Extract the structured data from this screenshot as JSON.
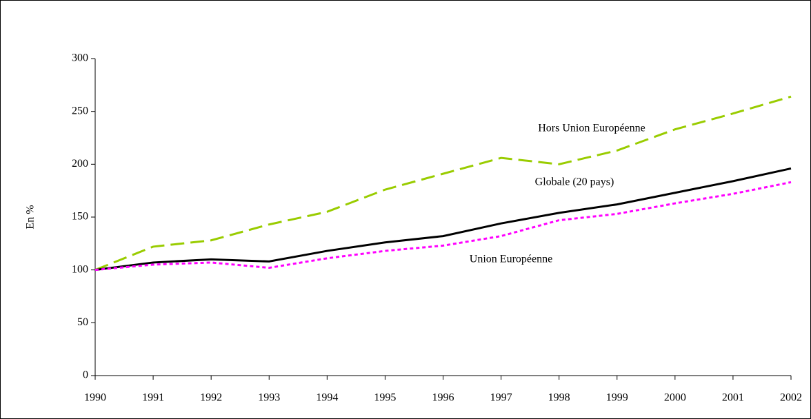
{
  "chart_data": {
    "type": "line",
    "y_label": "En %",
    "categories": [
      "1990",
      "1991",
      "1992",
      "1993",
      "1994",
      "1995",
      "1996",
      "1997",
      "1998",
      "1999",
      "2000",
      "2001",
      "2002"
    ],
    "series": [
      {
        "name": "Hors Union Européenne",
        "color": "#99cc00",
        "dash": "dashed",
        "values": [
          100,
          122,
          128,
          143,
          155,
          176,
          191,
          206,
          200,
          213,
          233,
          248,
          264
        ]
      },
      {
        "name": "Globale (20 pays)",
        "color": "#000000",
        "dash": "solid",
        "values": [
          100,
          107,
          110,
          108,
          118,
          126,
          132,
          144,
          154,
          162,
          173,
          184,
          196
        ]
      },
      {
        "name": "Union Européenne",
        "color": "#ff00ff",
        "dash": "dotted",
        "values": [
          100,
          105,
          107,
          102,
          111,
          118,
          123,
          132,
          147,
          153,
          163,
          172,
          183
        ]
      }
    ],
    "ylim": [
      0,
      300
    ],
    "yticks": [
      0,
      50,
      100,
      150,
      200,
      250,
      300
    ]
  }
}
